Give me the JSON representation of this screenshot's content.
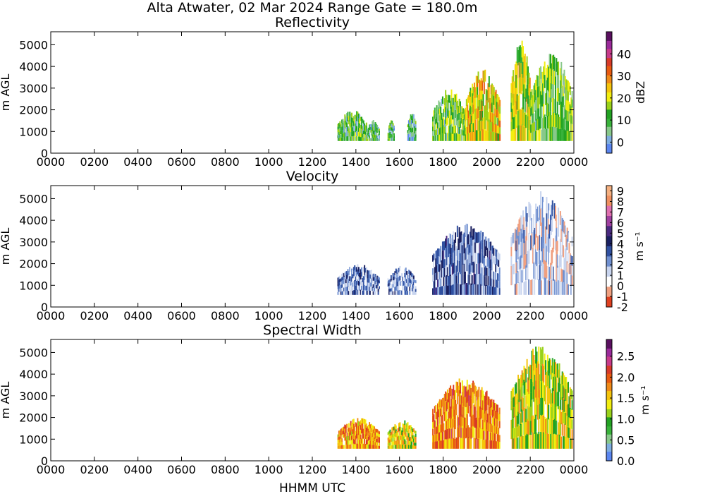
{
  "figure": {
    "title": "Alta Atwater, 02 Mar 2024 Range Gate = 180.0m",
    "xlabel": "HHMM UTC"
  },
  "chart_data": [
    {
      "type": "heatmap",
      "title": "Reflectivity",
      "ylabel": "m AGL",
      "xlim": [
        0,
        24
      ],
      "ylim": [
        0,
        5600
      ],
      "x_tick_labels": [
        "0000",
        "0200",
        "0400",
        "0600",
        "0800",
        "1000",
        "1200",
        "1400",
        "1600",
        "1800",
        "2000",
        "2200",
        "0000"
      ],
      "y_ticks": [
        0,
        1000,
        2000,
        3000,
        4000,
        5000
      ],
      "colorbar": {
        "label": "dBZ",
        "range": [
          -5,
          50
        ],
        "ticks": [
          0,
          10,
          20,
          30,
          40
        ],
        "colors": [
          "#5b86f0",
          "#7faee0",
          "#88c88a",
          "#38b23a",
          "#22a222",
          "#9ad21a",
          "#f2ee10",
          "#f5c40c",
          "#f08a18",
          "#e85a10",
          "#d83a28",
          "#c83a8a",
          "#9a2a9a",
          "#5a1060"
        ]
      },
      "data_extent": {
        "x_start_utc": "1315",
        "x_end_utc": "2345",
        "y_min_m": 540,
        "y_max_m": 5400
      },
      "segments": [
        {
          "x": [
            13.15,
            14.5
          ],
          "y": [
            560,
            2000
          ],
          "level": 10
        },
        {
          "x": [
            14.5,
            15.05
          ],
          "y": [
            560,
            1550
          ],
          "level": 8
        },
        {
          "x": [
            15.45,
            15.75
          ],
          "y": [
            560,
            1600
          ],
          "level": 8
        },
        {
          "x": [
            16.35,
            16.75
          ],
          "y": [
            560,
            1950
          ],
          "level": 7
        },
        {
          "x": [
            17.5,
            19.0
          ],
          "y": [
            560,
            3000
          ],
          "level": 12
        },
        {
          "x": [
            19.0,
            20.6
          ],
          "y": [
            560,
            3900
          ],
          "level": 22
        },
        {
          "x": [
            21.1,
            22.0
          ],
          "y": [
            560,
            5400
          ],
          "level": 18
        },
        {
          "x": [
            22.0,
            23.9
          ],
          "y": [
            560,
            4700
          ],
          "level": 12
        }
      ]
    },
    {
      "type": "heatmap",
      "title": "Velocity",
      "ylabel": "m AGL",
      "xlim": [
        0,
        24
      ],
      "ylim": [
        0,
        5600
      ],
      "x_tick_labels": [
        "0000",
        "0200",
        "0400",
        "0600",
        "0800",
        "1000",
        "1200",
        "1400",
        "1600",
        "1800",
        "2000",
        "2200",
        "0000"
      ],
      "y_ticks": [
        0,
        1000,
        2000,
        3000,
        4000,
        5000
      ],
      "colorbar": {
        "label": "m s⁻¹",
        "range": [
          -2,
          9.5
        ],
        "ticks": [
          -2,
          -1,
          0,
          1,
          2,
          3,
          4,
          5,
          6,
          7,
          8,
          9
        ],
        "colors": [
          "#e04020",
          "#f0a080",
          "#ffffff",
          "#c8d4ee",
          "#7090d0",
          "#3050a0",
          "#1a2060",
          "#4a2a80",
          "#a040a0",
          "#e070b0",
          "#f09060",
          "#f5b080"
        ]
      },
      "data_extent": {
        "x_start_utc": "1315",
        "x_end_utc": "2345",
        "y_min_m": 540,
        "y_max_m": 5400
      },
      "segments": [
        {
          "x": [
            13.15,
            15.05
          ],
          "y": [
            560,
            2000
          ],
          "level": 2.5
        },
        {
          "x": [
            15.45,
            16.75
          ],
          "y": [
            560,
            1950
          ],
          "level": 2.2
        },
        {
          "x": [
            17.5,
            20.6
          ],
          "y": [
            560,
            3900
          ],
          "level": 2.8
        },
        {
          "x": [
            21.1,
            23.9
          ],
          "y": [
            560,
            5400
          ],
          "level": 1.0
        }
      ]
    },
    {
      "type": "heatmap",
      "title": "Spectral Width",
      "ylabel": "m AGL",
      "xlim": [
        0,
        24
      ],
      "ylim": [
        0,
        5600
      ],
      "x_tick_labels": [
        "0000",
        "0200",
        "0400",
        "0600",
        "0800",
        "1000",
        "1200",
        "1400",
        "1600",
        "1800",
        "2000",
        "2200",
        "0000"
      ],
      "y_ticks": [
        0,
        1000,
        2000,
        3000,
        4000,
        5000
      ],
      "colorbar": {
        "label": "m s⁻¹",
        "range": [
          0,
          2.9
        ],
        "ticks": [
          "0.0",
          "0.5",
          "1.0",
          "1.5",
          "2.0",
          "2.5"
        ],
        "colors": [
          "#5b86f0",
          "#7faee0",
          "#88c88a",
          "#38b23a",
          "#22a222",
          "#9ad21a",
          "#f2ee10",
          "#f5c40c",
          "#f08a18",
          "#e85a10",
          "#d83a28",
          "#c83a8a",
          "#9a2a9a",
          "#5a1060"
        ]
      },
      "data_extent": {
        "x_start_utc": "1315",
        "x_end_utc": "2345",
        "y_min_m": 540,
        "y_max_m": 5400
      },
      "segments": [
        {
          "x": [
            13.15,
            15.05
          ],
          "y": [
            560,
            2000
          ],
          "level": 1.7
        },
        {
          "x": [
            15.45,
            16.75
          ],
          "y": [
            560,
            1950
          ],
          "level": 1.4
        },
        {
          "x": [
            17.5,
            20.6
          ],
          "y": [
            560,
            3900
          ],
          "level": 1.8
        },
        {
          "x": [
            21.1,
            23.9
          ],
          "y": [
            560,
            5400
          ],
          "level": 1.3
        }
      ]
    }
  ]
}
